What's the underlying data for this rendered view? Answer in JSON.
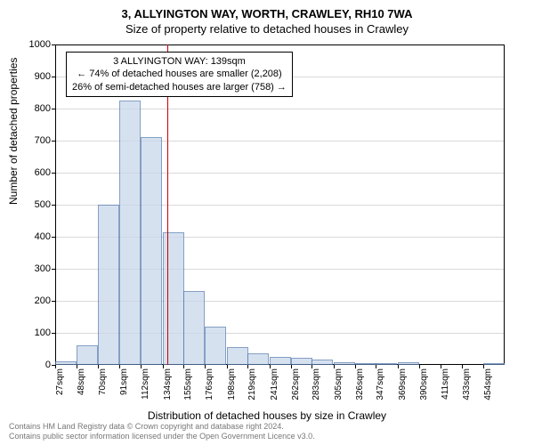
{
  "title_main": "3, ALLYINGTON WAY, WORTH, CRAWLEY, RH10 7WA",
  "title_sub": "Size of property relative to detached houses in Crawley",
  "ylabel": "Number of detached properties",
  "xlabel": "Distribution of detached houses by size in Crawley",
  "chart": {
    "type": "histogram",
    "background_color": "#ffffff",
    "plot_border_color": "#000000",
    "grid_color": "#e0e0e0",
    "bar_fill": "#c9d7ec",
    "bar_fill_opacity": 0.75,
    "bar_border": "#5b7fb0",
    "vline_color": "#cc0000",
    "ylim": [
      0,
      1000
    ],
    "ytick_step": 100,
    "yticks": [
      0,
      100,
      200,
      300,
      400,
      500,
      600,
      700,
      800,
      900,
      1000
    ],
    "xticks_sqm": [
      27,
      48,
      70,
      91,
      112,
      134,
      155,
      176,
      198,
      219,
      241,
      262,
      283,
      305,
      326,
      347,
      369,
      390,
      411,
      433,
      454
    ],
    "xtick_unit": "sqm",
    "bin_width_sqm": 21.35,
    "bars": [
      {
        "x_sqm": 27,
        "count": 10
      },
      {
        "x_sqm": 48,
        "count": 60
      },
      {
        "x_sqm": 70,
        "count": 500
      },
      {
        "x_sqm": 91,
        "count": 825
      },
      {
        "x_sqm": 112,
        "count": 710
      },
      {
        "x_sqm": 134,
        "count": 415
      },
      {
        "x_sqm": 155,
        "count": 230
      },
      {
        "x_sqm": 176,
        "count": 120
      },
      {
        "x_sqm": 198,
        "count": 55
      },
      {
        "x_sqm": 219,
        "count": 35
      },
      {
        "x_sqm": 241,
        "count": 25
      },
      {
        "x_sqm": 262,
        "count": 22
      },
      {
        "x_sqm": 283,
        "count": 18
      },
      {
        "x_sqm": 305,
        "count": 8
      },
      {
        "x_sqm": 326,
        "count": 5
      },
      {
        "x_sqm": 347,
        "count": 2
      },
      {
        "x_sqm": 369,
        "count": 8
      },
      {
        "x_sqm": 390,
        "count": 0
      },
      {
        "x_sqm": 411,
        "count": 0
      },
      {
        "x_sqm": 433,
        "count": 0
      },
      {
        "x_sqm": 454,
        "count": 2
      }
    ],
    "vline_x_sqm": 139,
    "annotation": {
      "line1": "3 ALLYINGTON WAY: 139sqm",
      "line2": "← 74% of detached houses are smaller (2,208)",
      "line3": "26% of semi-detached houses are larger (758) →"
    },
    "title_fontsize": 13,
    "label_fontsize": 12,
    "tick_fontsize": 11,
    "annotation_fontsize": 11
  },
  "footer": {
    "line1": "Contains HM Land Registry data © Crown copyright and database right 2024.",
    "line2": "Contains public sector information licensed under the Open Government Licence v3.0."
  }
}
